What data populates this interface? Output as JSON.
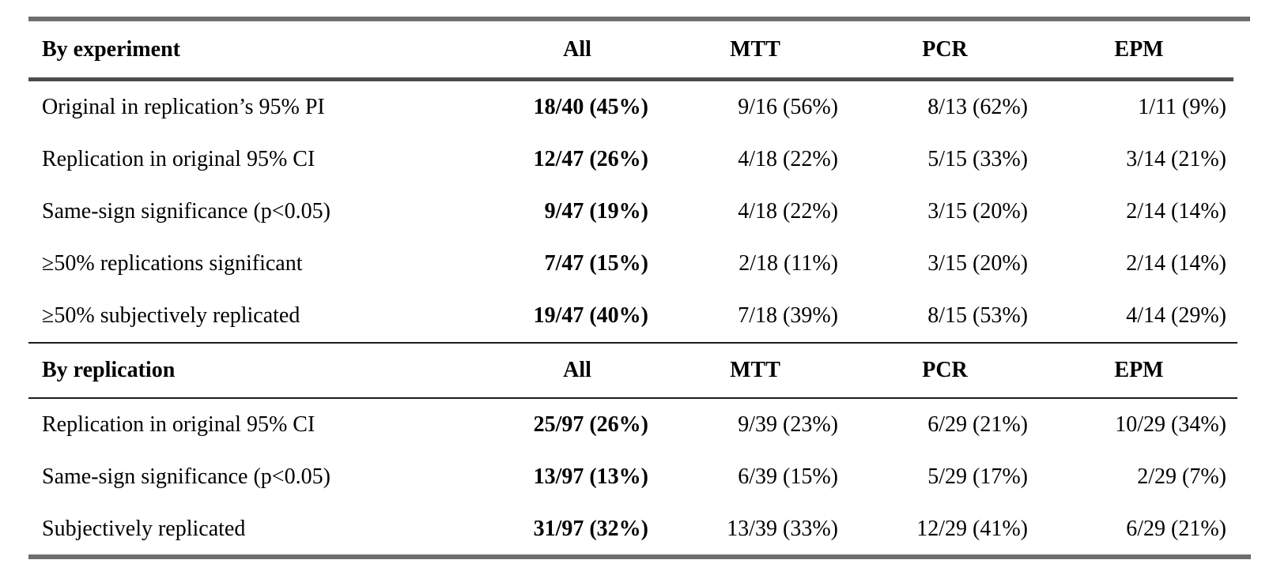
{
  "table": {
    "columns": [
      "All",
      "MTT",
      "PCR",
      "EPM"
    ],
    "sections": [
      {
        "header": "By experiment",
        "rows": [
          {
            "label": "Original in replication’s 95% PI",
            "values": [
              "18/40 (45%)",
              "9/16 (56%)",
              "8/13 (62%)",
              "1/11 (9%)"
            ]
          },
          {
            "label": "Replication in original 95% CI",
            "values": [
              "12/47 (26%)",
              "4/18 (22%)",
              "5/15 (33%)",
              "3/14 (21%)"
            ]
          },
          {
            "label": "Same-sign significance (p<0.05)",
            "values": [
              "9/47 (19%)",
              "4/18 (22%)",
              "3/15 (20%)",
              "2/14 (14%)"
            ]
          },
          {
            "label": "≥50% replications significant",
            "values": [
              "7/47 (15%)",
              "2/18 (11%)",
              "3/15 (20%)",
              "2/14 (14%)"
            ]
          },
          {
            "label": "≥50% subjectively replicated",
            "values": [
              "19/47 (40%)",
              "7/18 (39%)",
              "8/15 (53%)",
              "4/14 (29%)"
            ]
          }
        ]
      },
      {
        "header": "By replication",
        "rows": [
          {
            "label": "Replication in original 95% CI",
            "values": [
              "25/97 (26%)",
              "9/39 (23%)",
              "6/29 (21%)",
              "10/29 (34%)"
            ]
          },
          {
            "label": "Same-sign significance (p<0.05)",
            "values": [
              "13/97 (13%)",
              "6/39 (15%)",
              "5/29 (17%)",
              "2/29 (7%)"
            ]
          },
          {
            "label": "Subjectively replicated",
            "values": [
              "31/97 (32%)",
              "13/39 (33%)",
              "12/29 (41%)",
              "6/29 (21%)"
            ]
          }
        ]
      }
    ]
  },
  "chart_data": {
    "type": "table",
    "column_headers": [
      "",
      "All",
      "MTT",
      "PCR",
      "EPM"
    ],
    "row_groups": [
      {
        "group": "By experiment",
        "rows": [
          [
            "Original in replication’s 95% PI",
            "18/40 (45%)",
            "9/16 (56%)",
            "8/13 (62%)",
            "1/11 (9%)"
          ],
          [
            "Replication in original 95% CI",
            "12/47 (26%)",
            "4/18 (22%)",
            "5/15 (33%)",
            "3/14 (21%)"
          ],
          [
            "Same-sign significance (p<0.05)",
            "9/47 (19%)",
            "4/18 (22%)",
            "3/15 (20%)",
            "2/14 (14%)"
          ],
          [
            "≥50% replications significant",
            "7/47 (15%)",
            "2/18 (11%)",
            "3/15 (20%)",
            "2/14 (14%)"
          ],
          [
            "≥50% subjectively replicated",
            "19/47 (40%)",
            "7/18 (39%)",
            "8/15 (53%)",
            "4/14 (29%)"
          ]
        ]
      },
      {
        "group": "By replication",
        "rows": [
          [
            "Replication in original 95% CI",
            "25/97 (26%)",
            "9/39 (23%)",
            "6/29 (21%)",
            "10/29 (34%)"
          ],
          [
            "Same-sign significance (p<0.05)",
            "13/97 (13%)",
            "6/39 (15%)",
            "5/29 (17%)",
            "2/29 (7%)"
          ],
          [
            "Subjectively replicated",
            "31/97 (32%)",
            "13/39 (33%)",
            "12/29 (41%)",
            "6/29 (21%)"
          ]
        ]
      }
    ]
  },
  "colors": {
    "outer_bar_gray": "#6e6e6e",
    "header_rule_gray": "#4c4c4c",
    "thin_line_black": "#1d1d1d",
    "text": "#000000",
    "background": "#ffffff"
  }
}
